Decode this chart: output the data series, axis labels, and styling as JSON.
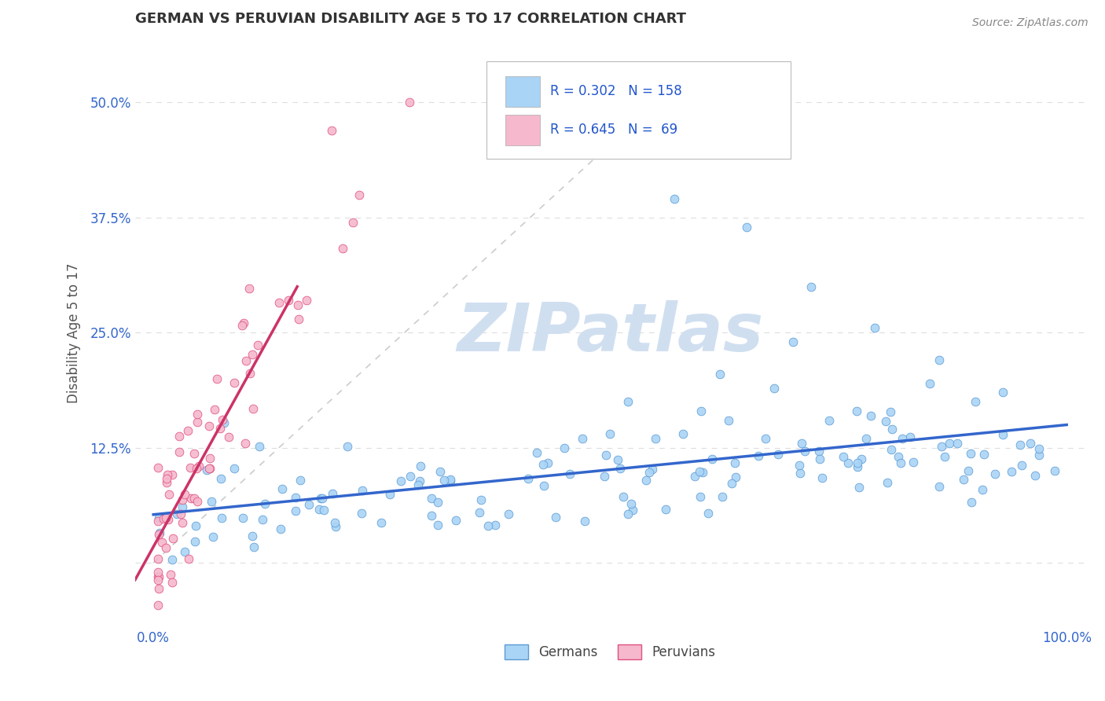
{
  "title": "GERMAN VS PERUVIAN DISABILITY AGE 5 TO 17 CORRELATION CHART",
  "source_text": "Source: ZipAtlas.com",
  "ylabel": "Disability Age 5 to 17",
  "german_color": "#aad4f5",
  "german_edge_color": "#5b9bd5",
  "peruvian_color": "#f5b8cc",
  "peruvian_edge_color": "#e05080",
  "german_line_color": "#3366cc",
  "peruvian_line_color": "#cc3366",
  "diag_color": "#cccccc",
  "grid_color": "#dddddd",
  "background_color": "#ffffff",
  "legend_R_color": "#2255cc",
  "title_color": "#333333",
  "axis_tick_color": "#3366cc",
  "watermark_color": "#d0dff0",
  "legend_box_german": "#aad4f5",
  "legend_box_peruvian": "#f5b8cc",
  "legend_label_german": "Germans",
  "legend_label_peruvian": "Peruvians",
  "german_R": 0.302,
  "german_N": 158,
  "peruvian_R": 0.645,
  "peruvian_N": 69,
  "xlim": [
    -0.02,
    1.02
  ],
  "ylim": [
    -0.07,
    0.57
  ],
  "y_ticks": [
    0.0,
    0.125,
    0.25,
    0.375,
    0.5
  ],
  "y_tick_labels": [
    "",
    "12.5%",
    "25.0%",
    "37.5%",
    "50.0%"
  ],
  "x_ticks": [
    0.0,
    1.0
  ],
  "x_tick_labels": [
    "0.0%",
    "100.0%"
  ]
}
